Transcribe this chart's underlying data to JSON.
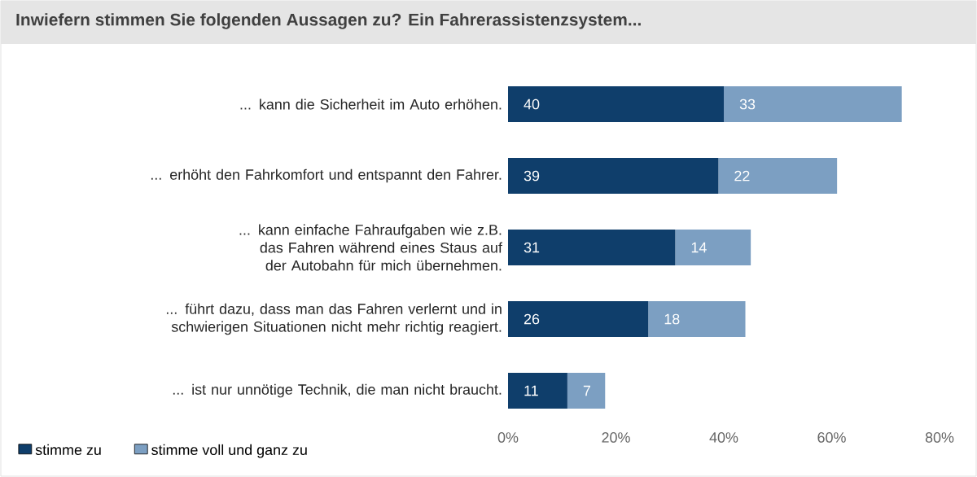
{
  "chart_data": {
    "type": "bar",
    "orientation": "horizontal",
    "stacked": true,
    "title": "Inwiefern stimmen Sie folgenden Aussagen zu? Ein Fahrerassistenzsystem...",
    "categories": [
      "... kann die Sicherheit im Auto erhöhen.",
      "... erhöht den Fahrkomfort und entspannt den Fahrer.",
      "... kann einfache Fahraufgaben wie z.B. das Fahren während eines Staus auf der Autobahn für mich übernehmen.",
      "... führt dazu, dass man das Fahren verlernt und in schwierigen Situationen nicht mehr richtig reagiert.",
      "... ist nur unnötige Technik, die man nicht braucht."
    ],
    "series": [
      {
        "name": "stimme zu",
        "color": "#0f3e6b",
        "values": [
          40,
          39,
          31,
          26,
          11
        ]
      },
      {
        "name": "stimme voll und ganz zu",
        "color": "#7c9fc2",
        "values": [
          33,
          22,
          14,
          18,
          7
        ]
      }
    ],
    "xlim": [
      0,
      80
    ],
    "xticks": [
      {
        "value": 0,
        "label": "0%"
      },
      {
        "value": 20,
        "label": "20%"
      },
      {
        "value": 40,
        "label": "40%"
      },
      {
        "value": 60,
        "label": "60%"
      },
      {
        "value": 80,
        "label": "80%"
      }
    ],
    "data_labels": true,
    "legend": "bottom left"
  }
}
